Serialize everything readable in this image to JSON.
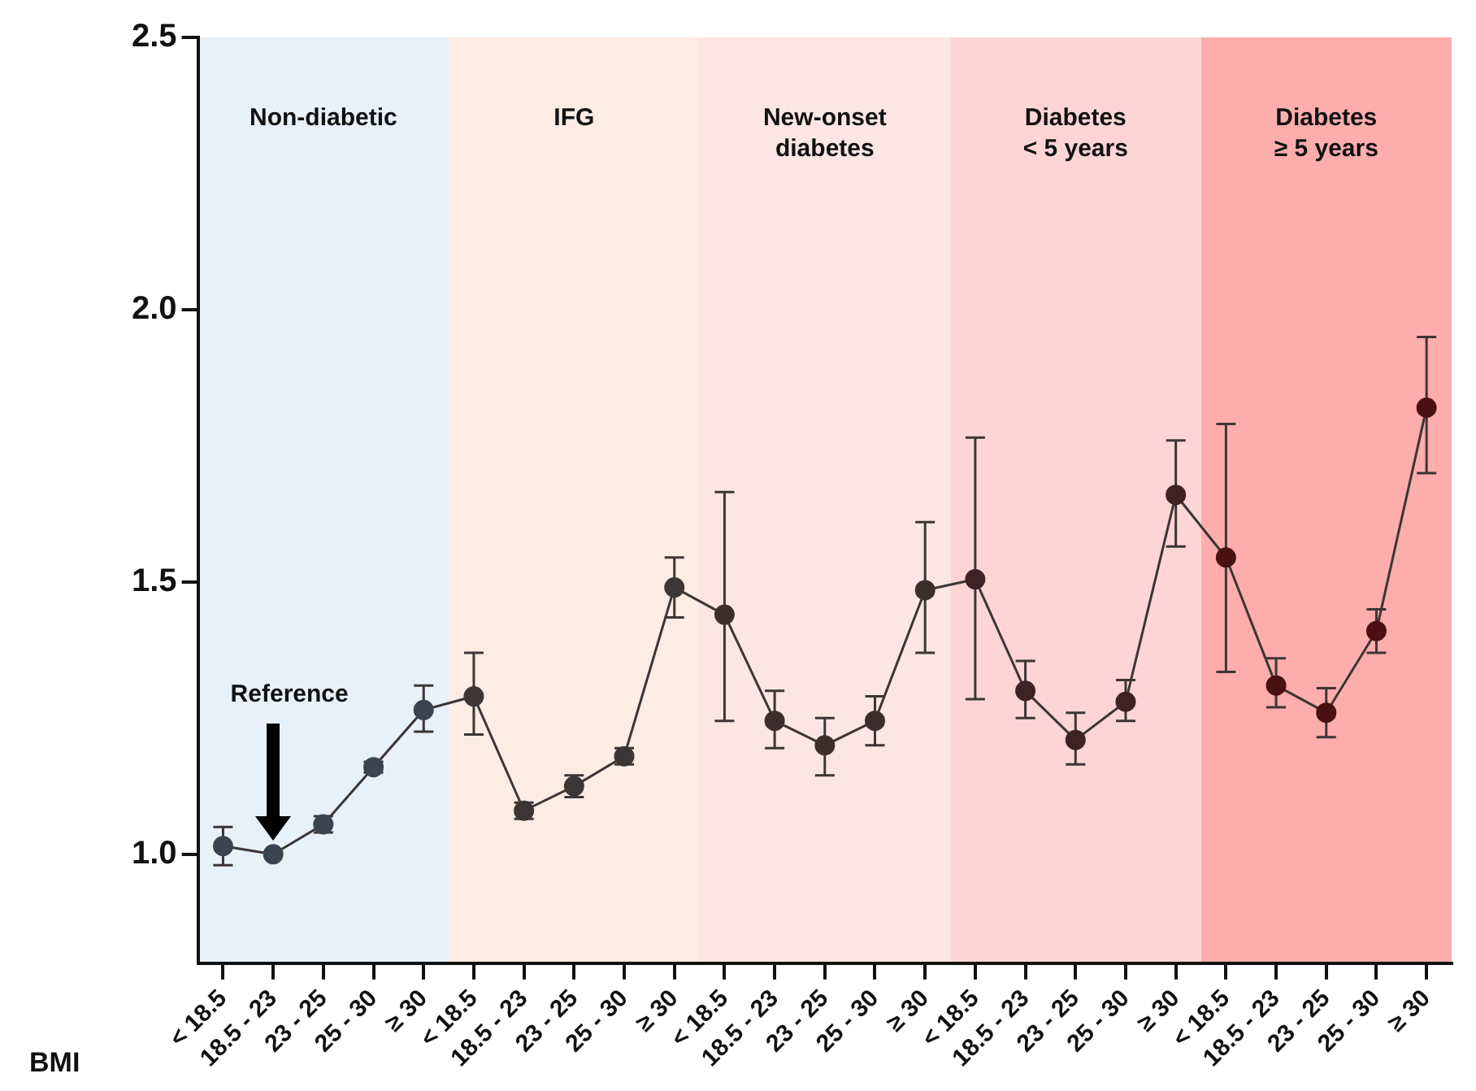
{
  "chart_data": {
    "type": "line",
    "xlabel": "BMI",
    "categories": [
      "< 18.5",
      "18.5 - 23",
      "23 - 25",
      "25 - 30",
      "≥ 30",
      "< 18.5",
      "18.5 - 23",
      "23 - 25",
      "25 - 30",
      "≥ 30",
      "< 18.5",
      "18.5 - 23",
      "23 - 25",
      "25 - 30",
      "≥ 30",
      "< 18.5",
      "18.5 - 23",
      "23 - 25",
      "25 - 30",
      "≥ 30",
      "< 18.5",
      "18.5 - 23",
      "23 - 25",
      "25 - 30",
      "≥ 30"
    ],
    "series": [
      {
        "color": "#3d3535",
        "colors": [
          "#3b4450",
          "#3b4450",
          "#3b4450",
          "#3b4450",
          "#3b4450",
          "#3e3535",
          "#3e3535",
          "#3e3535",
          "#3e3535",
          "#3e3535",
          "#3d2e2e",
          "#3d2e2e",
          "#3d2e2e",
          "#3d2e2e",
          "#3d2e2e",
          "#3f2224",
          "#3f2224",
          "#3f2224",
          "#3f2224",
          "#3f2224",
          "#4a1012",
          "#4a1012",
          "#4a1012",
          "#4a1012",
          "#4a1012"
        ],
        "values": [
          1.015,
          1.0,
          1.055,
          1.16,
          1.265,
          1.29,
          1.08,
          1.125,
          1.18,
          1.49,
          1.44,
          1.245,
          1.2,
          1.245,
          1.485,
          1.505,
          1.3,
          1.21,
          1.28,
          1.66,
          1.545,
          1.31,
          1.26,
          1.41,
          1.82
        ],
        "errors": [
          [
            0.98,
            1.05
          ],
          null,
          [
            1.04,
            1.07
          ],
          [
            1.15,
            1.17
          ],
          [
            1.225,
            1.31
          ],
          [
            1.22,
            1.37
          ],
          [
            1.065,
            1.095
          ],
          [
            1.105,
            1.145
          ],
          [
            1.165,
            1.195
          ],
          [
            1.435,
            1.545
          ],
          [
            1.245,
            1.665
          ],
          [
            1.195,
            1.3
          ],
          [
            1.145,
            1.25
          ],
          [
            1.2,
            1.29
          ],
          [
            1.37,
            1.61
          ],
          [
            1.285,
            1.765
          ],
          [
            1.25,
            1.355
          ],
          [
            1.165,
            1.26
          ],
          [
            1.245,
            1.32
          ],
          [
            1.565,
            1.76
          ],
          [
            1.335,
            1.79
          ],
          [
            1.27,
            1.36
          ],
          [
            1.215,
            1.305
          ],
          [
            1.37,
            1.45
          ],
          [
            1.7,
            1.95
          ]
        ]
      }
    ],
    "annotations": [
      "Non-diabetic",
      "IFG",
      "New-onset\ndiabetes",
      "Diabetes\n< 5 years",
      "Diabetes\n≥ 5 years",
      "Reference"
    ],
    "ylim": [
      0.8,
      2.5
    ],
    "yticks": [
      {
        "value": 1,
        "label": "1.0"
      },
      1.5,
      {
        "value": 2,
        "label": "2.0"
      },
      2.5
    ],
    "grid": false,
    "legend": false,
    "marker": "circle",
    "line_style": "solid"
  }
}
